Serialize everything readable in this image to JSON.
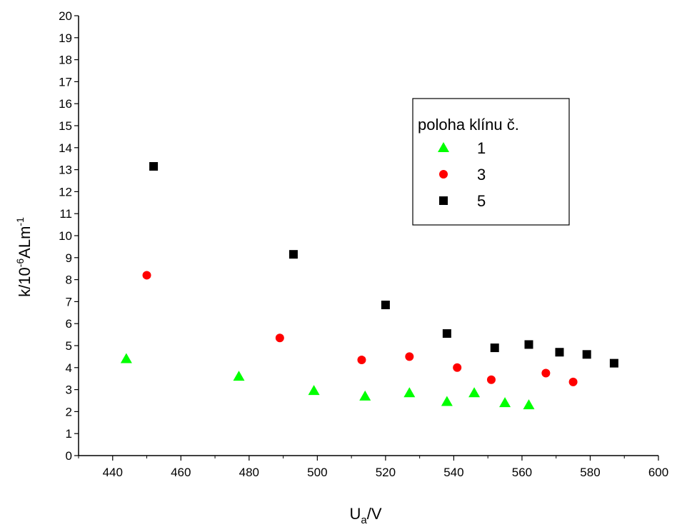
{
  "chart_data": {
    "type": "scatter",
    "xlabel_main": "U",
    "xlabel_sub": "a",
    "xlabel_rest": "/V",
    "ylabel_main": "k/10",
    "ylabel_exp1": "-6",
    "ylabel_mid": "ALm",
    "ylabel_exp2": "-1",
    "xlim": [
      430,
      600
    ],
    "ylim": [
      0,
      20
    ],
    "xticks": [
      440,
      460,
      480,
      500,
      520,
      540,
      560,
      580,
      600
    ],
    "yticks": [
      0,
      1,
      2,
      3,
      4,
      5,
      6,
      7,
      8,
      9,
      10,
      11,
      12,
      13,
      14,
      15,
      16,
      17,
      18,
      19,
      20
    ],
    "grid": false,
    "legend": {
      "title": "poloha klínu č.",
      "placement": "top-right"
    },
    "series": [
      {
        "name": "1",
        "marker": "triangle",
        "color": "#00ff00",
        "points": [
          {
            "x": 444,
            "y": 4.4
          },
          {
            "x": 477,
            "y": 3.6
          },
          {
            "x": 499,
            "y": 2.95
          },
          {
            "x": 514,
            "y": 2.7
          },
          {
            "x": 527,
            "y": 2.85
          },
          {
            "x": 538,
            "y": 2.45
          },
          {
            "x": 546,
            "y": 2.85
          },
          {
            "x": 555,
            "y": 2.4
          },
          {
            "x": 562,
            "y": 2.3
          }
        ]
      },
      {
        "name": "3",
        "marker": "circle",
        "color": "#ff0000",
        "points": [
          {
            "x": 450,
            "y": 8.2
          },
          {
            "x": 489,
            "y": 5.35
          },
          {
            "x": 513,
            "y": 4.35
          },
          {
            "x": 527,
            "y": 4.5
          },
          {
            "x": 541,
            "y": 4.0
          },
          {
            "x": 551,
            "y": 3.45
          },
          {
            "x": 567,
            "y": 3.75
          },
          {
            "x": 575,
            "y": 3.35
          }
        ]
      },
      {
        "name": "5",
        "marker": "square",
        "color": "#000000",
        "points": [
          {
            "x": 452,
            "y": 13.15
          },
          {
            "x": 493,
            "y": 9.15
          },
          {
            "x": 520,
            "y": 6.85
          },
          {
            "x": 538,
            "y": 5.55
          },
          {
            "x": 552,
            "y": 4.9
          },
          {
            "x": 562,
            "y": 5.05
          },
          {
            "x": 571,
            "y": 4.7
          },
          {
            "x": 579,
            "y": 4.6
          },
          {
            "x": 587,
            "y": 4.2
          }
        ]
      }
    ]
  }
}
